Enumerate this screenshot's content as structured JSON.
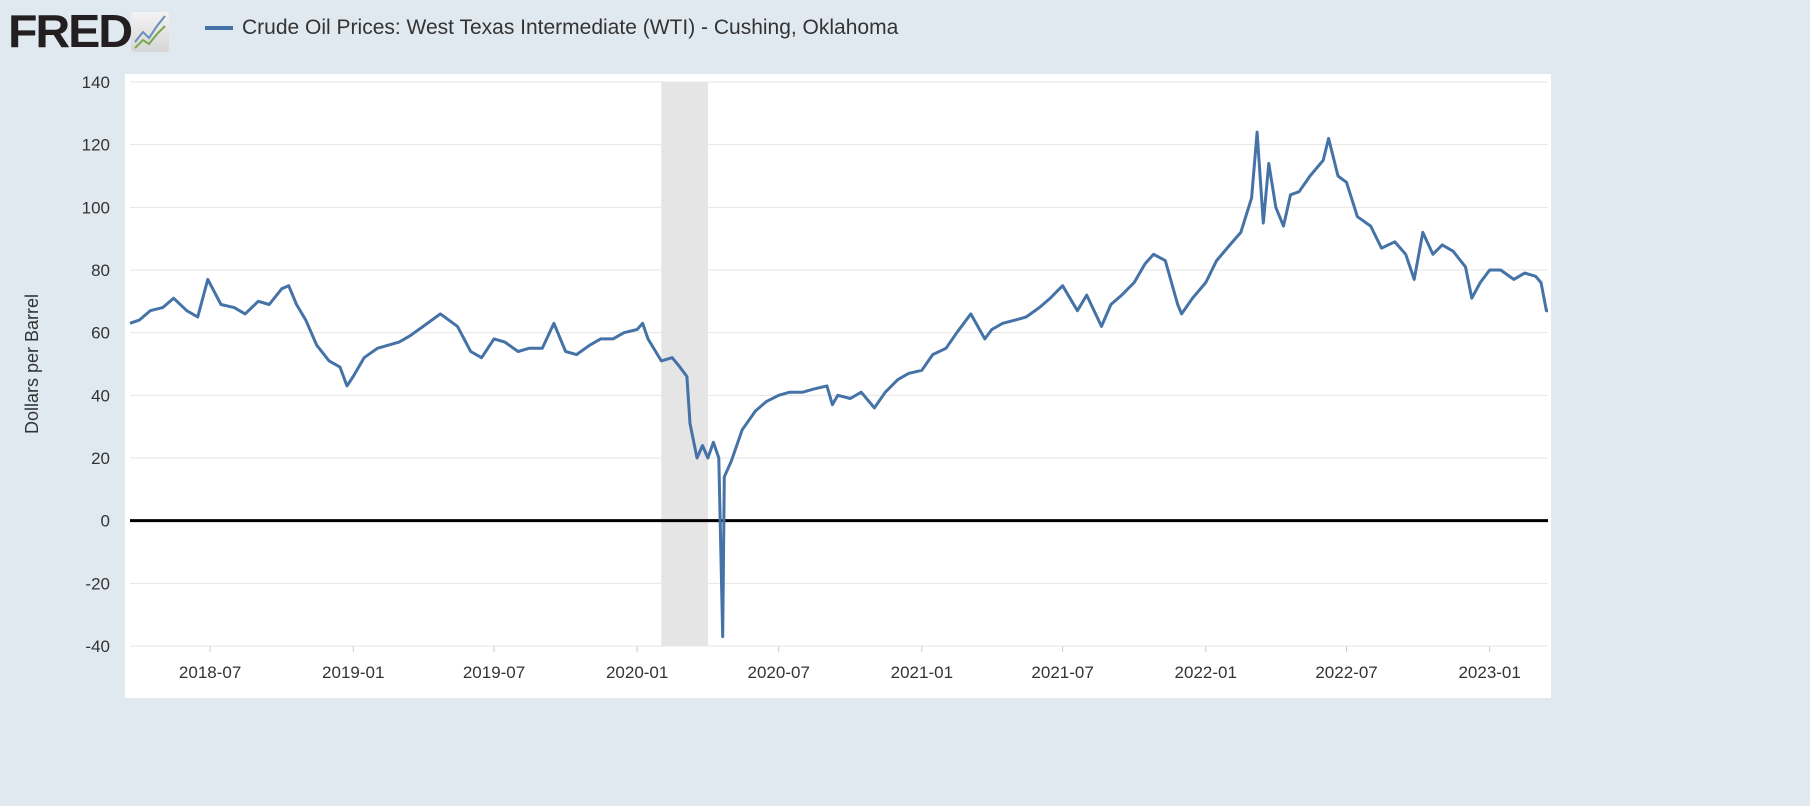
{
  "header": {
    "logo": "FRED",
    "legend_label": "Crude Oil Prices: West Texas Intermediate (WTI) - Cushing, Oklahoma"
  },
  "colors": {
    "series": "#4572a7",
    "recession": "#e5e5e5",
    "grid": "#e6e6e6",
    "zero_line": "#000000"
  },
  "chart_data": {
    "type": "line",
    "title": "Crude Oil Prices: West Texas Intermediate (WTI) - Cushing, Oklahoma",
    "xlabel": "",
    "ylabel": "Dollars per Barrel",
    "ylim": [
      -40,
      140
    ],
    "xlim": [
      "2018-03-20",
      "2023-03-17"
    ],
    "yticks": [
      -40,
      -20,
      0,
      20,
      40,
      60,
      80,
      100,
      120,
      140
    ],
    "xticks": [
      "2018-07",
      "2019-01",
      "2019-07",
      "2020-01",
      "2020-07",
      "2021-01",
      "2021-07",
      "2022-01",
      "2022-07",
      "2023-01"
    ],
    "grid": true,
    "legend": "top-left",
    "recessions": [
      {
        "start": "2020-02-01",
        "end": "2020-04-01"
      }
    ],
    "series": [
      {
        "name": "Crude Oil Prices: West Texas Intermediate (WTI) - Cushing, Oklahoma",
        "points": [
          [
            "2018-03-20",
            63
          ],
          [
            "2018-04-01",
            64
          ],
          [
            "2018-04-15",
            67
          ],
          [
            "2018-05-01",
            68
          ],
          [
            "2018-05-15",
            71
          ],
          [
            "2018-06-01",
            67
          ],
          [
            "2018-06-15",
            65
          ],
          [
            "2018-06-28",
            77
          ],
          [
            "2018-07-15",
            69
          ],
          [
            "2018-08-01",
            68
          ],
          [
            "2018-08-15",
            66
          ],
          [
            "2018-09-01",
            70
          ],
          [
            "2018-09-15",
            69
          ],
          [
            "2018-10-01",
            74
          ],
          [
            "2018-10-10",
            75
          ],
          [
            "2018-10-20",
            69
          ],
          [
            "2018-11-01",
            64
          ],
          [
            "2018-11-15",
            56
          ],
          [
            "2018-12-01",
            51
          ],
          [
            "2018-12-15",
            49
          ],
          [
            "2018-12-24",
            43
          ],
          [
            "2019-01-01",
            46
          ],
          [
            "2019-01-15",
            52
          ],
          [
            "2019-02-01",
            55
          ],
          [
            "2019-02-15",
            56
          ],
          [
            "2019-03-01",
            57
          ],
          [
            "2019-03-15",
            59
          ],
          [
            "2019-04-01",
            62
          ],
          [
            "2019-04-23",
            66
          ],
          [
            "2019-05-15",
            62
          ],
          [
            "2019-06-01",
            54
          ],
          [
            "2019-06-15",
            52
          ],
          [
            "2019-07-01",
            58
          ],
          [
            "2019-07-15",
            57
          ],
          [
            "2019-08-01",
            54
          ],
          [
            "2019-08-15",
            55
          ],
          [
            "2019-09-01",
            55
          ],
          [
            "2019-09-16",
            63
          ],
          [
            "2019-10-01",
            54
          ],
          [
            "2019-10-15",
            53
          ],
          [
            "2019-11-01",
            56
          ],
          [
            "2019-11-15",
            58
          ],
          [
            "2019-12-01",
            58
          ],
          [
            "2019-12-15",
            60
          ],
          [
            "2020-01-01",
            61
          ],
          [
            "2020-01-08",
            63
          ],
          [
            "2020-01-15",
            58
          ],
          [
            "2020-02-01",
            51
          ],
          [
            "2020-02-15",
            52
          ],
          [
            "2020-02-25",
            49
          ],
          [
            "2020-03-05",
            46
          ],
          [
            "2020-03-09",
            31
          ],
          [
            "2020-03-18",
            20
          ],
          [
            "2020-03-25",
            24
          ],
          [
            "2020-04-01",
            20
          ],
          [
            "2020-04-08",
            25
          ],
          [
            "2020-04-15",
            20
          ],
          [
            "2020-04-20",
            -37
          ],
          [
            "2020-04-22",
            14
          ],
          [
            "2020-05-01",
            19
          ],
          [
            "2020-05-15",
            29
          ],
          [
            "2020-06-01",
            35
          ],
          [
            "2020-06-15",
            38
          ],
          [
            "2020-07-01",
            40
          ],
          [
            "2020-07-15",
            41
          ],
          [
            "2020-08-01",
            41
          ],
          [
            "2020-08-15",
            42
          ],
          [
            "2020-09-01",
            43
          ],
          [
            "2020-09-08",
            37
          ],
          [
            "2020-09-15",
            40
          ],
          [
            "2020-10-01",
            39
          ],
          [
            "2020-10-15",
            41
          ],
          [
            "2020-11-01",
            36
          ],
          [
            "2020-11-15",
            41
          ],
          [
            "2020-12-01",
            45
          ],
          [
            "2020-12-15",
            47
          ],
          [
            "2021-01-01",
            48
          ],
          [
            "2021-01-15",
            53
          ],
          [
            "2021-02-01",
            55
          ],
          [
            "2021-02-15",
            60
          ],
          [
            "2021-03-05",
            66
          ],
          [
            "2021-03-23",
            58
          ],
          [
            "2021-04-01",
            61
          ],
          [
            "2021-04-15",
            63
          ],
          [
            "2021-05-01",
            64
          ],
          [
            "2021-05-15",
            65
          ],
          [
            "2021-06-01",
            68
          ],
          [
            "2021-06-15",
            71
          ],
          [
            "2021-07-01",
            75
          ],
          [
            "2021-07-20",
            67
          ],
          [
            "2021-08-01",
            72
          ],
          [
            "2021-08-20",
            62
          ],
          [
            "2021-09-01",
            69
          ],
          [
            "2021-09-15",
            72
          ],
          [
            "2021-10-01",
            76
          ],
          [
            "2021-10-15",
            82
          ],
          [
            "2021-10-26",
            85
          ],
          [
            "2021-11-10",
            83
          ],
          [
            "2021-11-26",
            69
          ],
          [
            "2021-12-01",
            66
          ],
          [
            "2021-12-15",
            71
          ],
          [
            "2022-01-01",
            76
          ],
          [
            "2022-01-15",
            83
          ],
          [
            "2022-02-01",
            88
          ],
          [
            "2022-02-15",
            92
          ],
          [
            "2022-03-01",
            103
          ],
          [
            "2022-03-08",
            124
          ],
          [
            "2022-03-16",
            95
          ],
          [
            "2022-03-23",
            114
          ],
          [
            "2022-04-01",
            100
          ],
          [
            "2022-04-11",
            94
          ],
          [
            "2022-04-20",
            104
          ],
          [
            "2022-05-01",
            105
          ],
          [
            "2022-05-15",
            110
          ],
          [
            "2022-06-01",
            115
          ],
          [
            "2022-06-08",
            122
          ],
          [
            "2022-06-20",
            110
          ],
          [
            "2022-07-01",
            108
          ],
          [
            "2022-07-15",
            97
          ],
          [
            "2022-08-01",
            94
          ],
          [
            "2022-08-15",
            87
          ],
          [
            "2022-09-01",
            89
          ],
          [
            "2022-09-15",
            85
          ],
          [
            "2022-09-26",
            77
          ],
          [
            "2022-10-07",
            92
          ],
          [
            "2022-10-20",
            85
          ],
          [
            "2022-11-01",
            88
          ],
          [
            "2022-11-15",
            86
          ],
          [
            "2022-12-01",
            81
          ],
          [
            "2022-12-09",
            71
          ],
          [
            "2022-12-20",
            76
          ],
          [
            "2023-01-01",
            80
          ],
          [
            "2023-01-15",
            80
          ],
          [
            "2023-02-01",
            77
          ],
          [
            "2023-02-15",
            79
          ],
          [
            "2023-03-01",
            78
          ],
          [
            "2023-03-08",
            76
          ],
          [
            "2023-03-15",
            67
          ],
          [
            "2023-03-17",
            67
          ]
        ]
      }
    ]
  }
}
